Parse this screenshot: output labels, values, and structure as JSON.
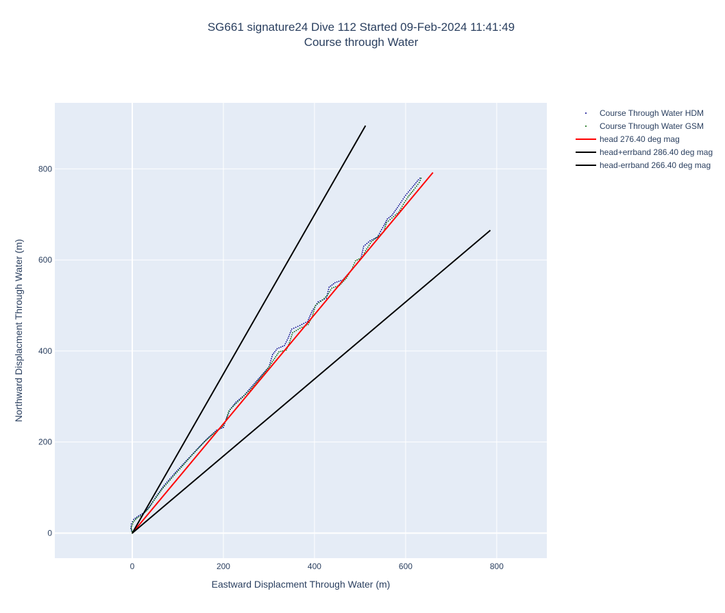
{
  "chart_data": {
    "type": "line",
    "title_line1": "SG661 signature24 Dive 112 Started 09-Feb-2024 11:41:49",
    "title_line2": "Course through Water",
    "xlabel": "Eastward Displacment Through Water (m)",
    "ylabel": "Northward Displacment Through Water (m)",
    "xlim": [
      -170,
      910
    ],
    "ylim": [
      -55,
      945
    ],
    "xticks": [
      0,
      200,
      400,
      600,
      800
    ],
    "yticks": [
      0,
      200,
      400,
      600,
      800
    ],
    "grid": true,
    "legend_position": "top-right",
    "colors": {
      "plot_bg": "#e5ecf6",
      "grid": "#ffffff",
      "hdm": "#00008b",
      "gsm": "#006400",
      "head": "#ff0000",
      "band": "#000000"
    },
    "series": [
      {
        "name": "Course Through Water HDM",
        "mode": "dotted",
        "color": "#00008b",
        "points": [
          [
            0,
            0
          ],
          [
            -3,
            10
          ],
          [
            -2,
            20
          ],
          [
            3,
            30
          ],
          [
            14,
            38
          ],
          [
            26,
            45
          ],
          [
            38,
            58
          ],
          [
            52,
            80
          ],
          [
            70,
            105
          ],
          [
            92,
            130
          ],
          [
            115,
            155
          ],
          [
            140,
            182
          ],
          [
            165,
            208
          ],
          [
            185,
            226
          ],
          [
            200,
            232
          ],
          [
            206,
            250
          ],
          [
            215,
            272
          ],
          [
            228,
            288
          ],
          [
            245,
            302
          ],
          [
            265,
            325
          ],
          [
            285,
            348
          ],
          [
            300,
            365
          ],
          [
            308,
            392
          ],
          [
            318,
            405
          ],
          [
            334,
            412
          ],
          [
            342,
            428
          ],
          [
            350,
            448
          ],
          [
            368,
            456
          ],
          [
            385,
            465
          ],
          [
            395,
            488
          ],
          [
            408,
            508
          ],
          [
            426,
            516
          ],
          [
            432,
            540
          ],
          [
            445,
            550
          ],
          [
            462,
            556
          ],
          [
            478,
            574
          ],
          [
            490,
            588
          ],
          [
            502,
            604
          ],
          [
            508,
            630
          ],
          [
            522,
            642
          ],
          [
            538,
            650
          ],
          [
            552,
            675
          ],
          [
            560,
            690
          ],
          [
            570,
            698
          ],
          [
            582,
            715
          ],
          [
            592,
            730
          ],
          [
            600,
            742
          ],
          [
            615,
            760
          ],
          [
            628,
            776
          ],
          [
            635,
            783
          ]
        ]
      },
      {
        "name": "Course Through Water GSM",
        "mode": "dotted",
        "color": "#006400",
        "points": [
          [
            0,
            0
          ],
          [
            -2,
            12
          ],
          [
            2,
            24
          ],
          [
            10,
            33
          ],
          [
            22,
            40
          ],
          [
            34,
            52
          ],
          [
            48,
            72
          ],
          [
            65,
            96
          ],
          [
            86,
            120
          ],
          [
            108,
            145
          ],
          [
            132,
            172
          ],
          [
            158,
            200
          ],
          [
            180,
            220
          ],
          [
            198,
            234
          ],
          [
            206,
            248
          ],
          [
            212,
            268
          ],
          [
            225,
            282
          ],
          [
            242,
            298
          ],
          [
            262,
            318
          ],
          [
            282,
            342
          ],
          [
            298,
            362
          ],
          [
            310,
            380
          ],
          [
            322,
            398
          ],
          [
            338,
            402
          ],
          [
            345,
            418
          ],
          [
            352,
            440
          ],
          [
            368,
            450
          ],
          [
            386,
            458
          ],
          [
            395,
            475
          ],
          [
            402,
            500
          ],
          [
            418,
            512
          ],
          [
            428,
            522
          ],
          [
            438,
            538
          ],
          [
            455,
            544
          ],
          [
            470,
            560
          ],
          [
            482,
            580
          ],
          [
            490,
            598
          ],
          [
            505,
            606
          ],
          [
            512,
            620
          ],
          [
            525,
            640
          ],
          [
            540,
            652
          ],
          [
            552,
            662
          ],
          [
            558,
            682
          ],
          [
            570,
            692
          ],
          [
            585,
            705
          ],
          [
            595,
            722
          ],
          [
            605,
            738
          ],
          [
            618,
            754
          ],
          [
            630,
            770
          ],
          [
            636,
            784
          ]
        ]
      },
      {
        "name": "head 276.40 deg mag",
        "mode": "line",
        "color": "#ff0000",
        "points": [
          [
            0,
            0
          ],
          [
            660,
            792
          ]
        ]
      },
      {
        "name": "head+errband 286.40 deg mag",
        "mode": "line",
        "color": "#000000",
        "points": [
          [
            0,
            0
          ],
          [
            512,
            895
          ]
        ]
      },
      {
        "name": "head-errband 266.40 deg mag",
        "mode": "line",
        "color": "#000000",
        "points": [
          [
            0,
            0
          ],
          [
            786,
            665
          ]
        ]
      }
    ]
  }
}
